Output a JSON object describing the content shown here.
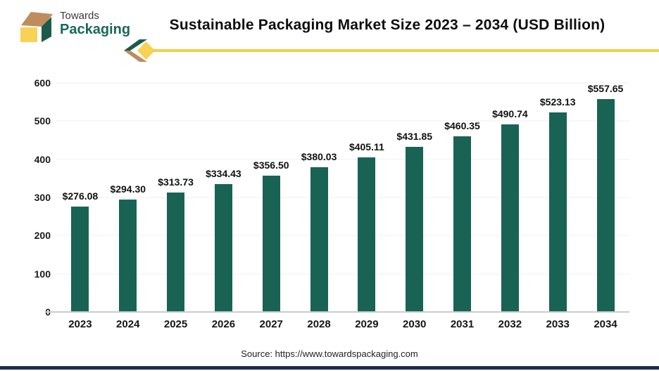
{
  "brand": {
    "towards": "Towards",
    "packaging": "Packaging"
  },
  "header": {
    "title": "Sustainable Packaging Market Size 2023 – 2034 (USD Billion)"
  },
  "footer": {
    "source": "Source: https://www.towardspackaging.com"
  },
  "colors": {
    "bar": "#196354",
    "brand_green": "#17685a",
    "logo_dark_green": "#1c5b4b",
    "logo_tan": "#bf8c5e",
    "logo_yellow": "#f7d254",
    "accent_line_yellow": "#f0d049",
    "bottom_bar_navy": "#202c4e",
    "gridline": "#eef2f2",
    "baseline": "#c9ccd0"
  },
  "chart_data": {
    "type": "bar",
    "title": "Sustainable Packaging Market Size 2023 – 2034 (USD Billion)",
    "categories": [
      "2023",
      "2024",
      "2025",
      "2026",
      "2027",
      "2028",
      "2029",
      "2030",
      "2031",
      "2032",
      "2033",
      "2034"
    ],
    "values": [
      276.08,
      294.3,
      313.73,
      334.43,
      356.5,
      380.03,
      405.11,
      431.85,
      460.35,
      490.74,
      523.13,
      557.65
    ],
    "value_labels": [
      "$276.08",
      "$294.30",
      "$313.73",
      "$334.43",
      "$356.50",
      "$380.03",
      "$405.11",
      "$431.85",
      "$460.35",
      "$490.74",
      "$523.13",
      "$557.65"
    ],
    "xlabel": "",
    "ylabel": "",
    "ylim": [
      0,
      600
    ],
    "yticks": [
      0,
      100,
      200,
      300,
      400,
      500,
      600
    ],
    "grid": true,
    "legend_position": "none"
  }
}
